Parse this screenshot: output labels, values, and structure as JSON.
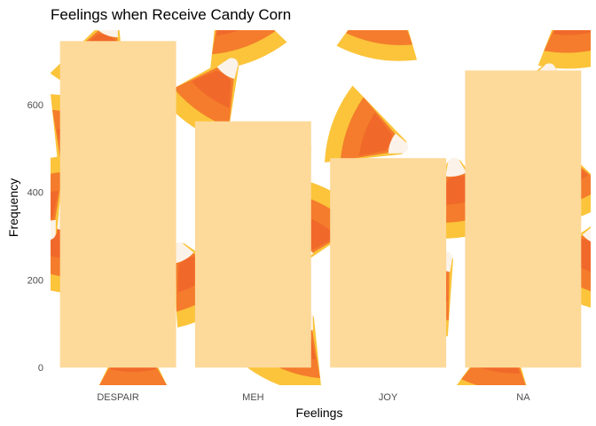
{
  "chart_data": {
    "type": "bar",
    "title": "Feelings when Receive Candy Corn",
    "xlabel": "Feelings",
    "ylabel": "Frequency",
    "categories": [
      "DESPAIR",
      "MEH",
      "JOY",
      "NA"
    ],
    "values": [
      745,
      562,
      478,
      678
    ],
    "ylim": [
      -40,
      770
    ],
    "yticks": [
      0,
      200,
      400,
      600
    ],
    "grid": false,
    "legend": "none",
    "bar_color": "#fdd99a",
    "background": "candy corn pattern",
    "colors": {
      "candy_orange": "#f47c2c",
      "candy_red": "#ee5a2a",
      "candy_yellow": "#fbc43a",
      "candy_tip": "#fbf3ea"
    }
  }
}
